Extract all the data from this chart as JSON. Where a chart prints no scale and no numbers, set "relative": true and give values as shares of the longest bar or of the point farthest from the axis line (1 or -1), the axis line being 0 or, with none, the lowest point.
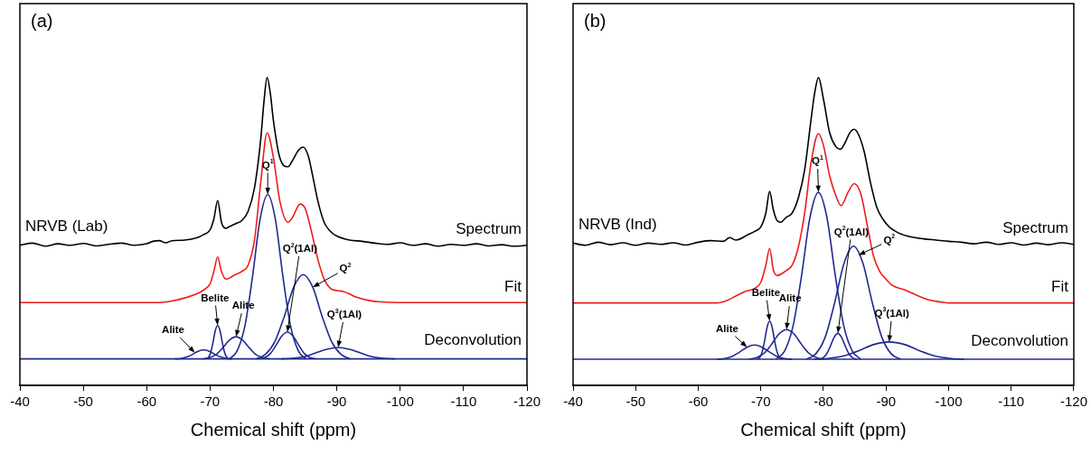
{
  "chart_data": [
    {
      "type": "line",
      "title": "(a)",
      "xlabel": "Chemical shift (ppm)",
      "relative": true,
      "tick_labels": "x",
      "xlim": [
        -40,
        -120
      ],
      "xticks": [
        -40,
        -50,
        -60,
        -70,
        -80,
        -90,
        -100,
        -110,
        -120
      ],
      "series": [
        {
          "name": "Spectrum",
          "color": "#000000",
          "x": [
            -40,
            -42,
            -44,
            -46,
            -48,
            -50,
            -52,
            -54,
            -56,
            -58,
            -60,
            -61,
            -62,
            -63,
            -64,
            -66,
            -68,
            -69,
            -70,
            -70.6,
            -71.2,
            -71.8,
            -72.5,
            -73,
            -74,
            -75,
            -76,
            -77,
            -78,
            -78.5,
            -79,
            -79.5,
            -80,
            -81,
            -82.3,
            -83,
            -84,
            -84.7,
            -85.5,
            -86,
            -87,
            -88,
            -89,
            -90,
            -92,
            -94,
            -96,
            -98,
            -100,
            -102,
            -104,
            -106,
            -108,
            -110,
            -112,
            -114,
            -116,
            -118,
            -120
          ],
          "values": [
            0.455,
            0.462,
            0.452,
            0.46,
            0.455,
            0.461,
            0.453,
            0.458,
            0.462,
            0.455,
            0.46,
            0.468,
            0.47,
            0.463,
            0.47,
            0.472,
            0.48,
            0.49,
            0.505,
            0.54,
            0.6,
            0.53,
            0.51,
            0.515,
            0.525,
            0.535,
            0.565,
            0.64,
            0.8,
            0.92,
            1.0,
            0.95,
            0.86,
            0.74,
            0.71,
            0.73,
            0.765,
            0.774,
            0.745,
            0.7,
            0.6,
            0.53,
            0.5,
            0.485,
            0.472,
            0.468,
            0.462,
            0.458,
            0.463,
            0.455,
            0.46,
            0.452,
            0.458,
            0.455,
            0.46,
            0.453,
            0.457,
            0.452,
            0.455
          ]
        },
        {
          "name": "Fit",
          "color": "#ee1c1c",
          "x": [
            -40,
            -62,
            -64,
            -66,
            -68,
            -69,
            -70,
            -70.6,
            -71.2,
            -71.8,
            -72.5,
            -74,
            -75,
            -76,
            -77,
            -78,
            -79,
            -80,
            -81,
            -82.3,
            -83,
            -84.2,
            -85,
            -86,
            -87,
            -88,
            -89,
            -90,
            -91,
            -92,
            -93,
            -95,
            -97,
            -100,
            -120
          ],
          "values": [
            0.269,
            0.269,
            0.274,
            0.284,
            0.298,
            0.31,
            0.33,
            0.37,
            0.417,
            0.37,
            0.345,
            0.36,
            0.37,
            0.39,
            0.47,
            0.66,
            0.82,
            0.74,
            0.6,
            0.53,
            0.545,
            0.589,
            0.575,
            0.5,
            0.41,
            0.345,
            0.315,
            0.308,
            0.305,
            0.297,
            0.287,
            0.276,
            0.271,
            0.269,
            0.269
          ]
        },
        {
          "color": "#1f2a8f",
          "x": [
            -40,
            -120
          ],
          "values": [
            0.086,
            0.086
          ]
        },
        {
          "color": "#1f2a8f",
          "x": [
            -64.5,
            -65.4,
            -66.3,
            -67.2,
            -68.1,
            -69,
            -69.9,
            -70.8,
            -71.7,
            -72.6,
            -73.5
          ],
          "values": [
            0.086,
            0.087,
            0.092,
            0.1,
            0.111,
            0.115,
            0.111,
            0.1,
            0.092,
            0.087,
            0.086
          ]
        },
        {
          "color": "#1f2a8f",
          "x": [
            -69.4,
            -69.76,
            -70.12,
            -70.48,
            -70.84,
            -71.2,
            -71.56,
            -71.92,
            -72.28,
            -72.64,
            -73
          ],
          "values": [
            0.086,
            0.091,
            0.108,
            0.141,
            0.179,
            0.195,
            0.179,
            0.141,
            0.108,
            0.091,
            0.086
          ]
        },
        {
          "color": "#1f2a8f",
          "x": [
            -68.85,
            -69.9,
            -70.95,
            -72,
            -73.05,
            -74.1,
            -75.15,
            -76.2,
            -77.25,
            -78.3,
            -79.35
          ],
          "values": [
            0.086,
            0.09,
            0.1,
            0.122,
            0.147,
            0.158,
            0.147,
            0.122,
            0.1,
            0.09,
            0.086
          ]
        },
        {
          "color": "#1f2a8f",
          "x": [
            -73.1,
            -74.3,
            -75.5,
            -76.7,
            -77.9,
            -79.1,
            -80.3,
            -81.5,
            -82.7,
            -83.9,
            -85.1
          ],
          "values": [
            0.086,
            0.113,
            0.193,
            0.353,
            0.54,
            0.62,
            0.54,
            0.353,
            0.193,
            0.113,
            0.086
          ]
        },
        {
          "color": "#1f2a8f",
          "x": [
            -77.7,
            -78.6,
            -79.5,
            -80.4,
            -81.3,
            -82.2,
            -83.1,
            -84,
            -84.9,
            -85.8,
            -86.7
          ],
          "values": [
            0.086,
            0.09,
            0.103,
            0.13,
            0.16,
            0.173,
            0.16,
            0.13,
            0.103,
            0.09,
            0.086
          ]
        },
        {
          "color": "#1f2a8f",
          "x": [
            -77.2,
            -78.7,
            -80.2,
            -81.7,
            -83.2,
            -84.7,
            -86.2,
            -87.7,
            -89.2,
            -90.7,
            -92.2
          ],
          "values": [
            0.086,
            0.1,
            0.141,
            0.223,
            0.319,
            0.36,
            0.319,
            0.223,
            0.141,
            0.1,
            0.086
          ]
        },
        {
          "color": "#1f2a8f",
          "x": [
            -81.2,
            -83,
            -84.8,
            -86.6,
            -88.4,
            -90.2,
            -92,
            -93.8,
            -95.6,
            -97.4,
            -99.2
          ],
          "values": [
            0.086,
            0.088,
            0.093,
            0.105,
            0.117,
            0.123,
            0.117,
            0.105,
            0.093,
            0.088,
            0.086
          ]
        }
      ],
      "annotations": [
        "NRVB (Lab)",
        "Deconvolution",
        {
          "text": "Alite",
          "x": -67.6,
          "y": 0.106
        },
        {
          "text": "Belite",
          "x": -71.2,
          "y": 0.195
        },
        {
          "text": "Alite",
          "x": -74.1,
          "y": 0.158
        },
        {
          "text": "Q$^{1}$",
          "x": -79.1,
          "y": 0.62
        },
        {
          "text": "Q$^{2}$(1Al)",
          "x": -82.2,
          "y": 0.173
        },
        {
          "text": "Q$^{2}$",
          "x": -86.2,
          "y": 0.319
        },
        {
          "text": "Q$^{3}$(1Al)",
          "x": -90.2,
          "y": 0.123
        }
      ]
    },
    {
      "type": "line",
      "title": "(b)",
      "xlabel": "Chemical shift (ppm)",
      "relative": true,
      "tick_labels": "x",
      "xlim": [
        -40,
        -120
      ],
      "xticks": [
        -40,
        -50,
        -60,
        -70,
        -80,
        -90,
        -100,
        -110,
        -120
      ],
      "series": [
        {
          "name": "Spectrum",
          "color": "#000000",
          "x": [
            -40,
            -42,
            -44,
            -46,
            -48,
            -50,
            -52,
            -54,
            -56,
            -58,
            -60,
            -62,
            -64,
            -65,
            -66,
            -68,
            -69,
            -70,
            -70.8,
            -71.4,
            -72,
            -72.6,
            -73.2,
            -74,
            -75,
            -76,
            -77,
            -78,
            -78.6,
            -79.2,
            -80,
            -81,
            -82,
            -82.7,
            -83.5,
            -84.2,
            -84.9,
            -85.6,
            -86.5,
            -87.5,
            -88.5,
            -89.5,
            -90.5,
            -92,
            -94,
            -96,
            -98,
            -100,
            -102,
            -104,
            -106,
            -108,
            -110,
            -112,
            -114,
            -116,
            -118,
            -120
          ],
          "values": [
            0.462,
            0.455,
            0.465,
            0.457,
            0.463,
            0.455,
            0.462,
            0.458,
            0.463,
            0.456,
            0.465,
            0.47,
            0.468,
            0.48,
            0.472,
            0.49,
            0.5,
            0.515,
            0.56,
            0.63,
            0.57,
            0.535,
            0.53,
            0.545,
            0.56,
            0.61,
            0.7,
            0.86,
            0.95,
            1.0,
            0.93,
            0.82,
            0.775,
            0.767,
            0.79,
            0.82,
            0.832,
            0.815,
            0.76,
            0.66,
            0.58,
            0.54,
            0.515,
            0.495,
            0.482,
            0.476,
            0.472,
            0.468,
            0.465,
            0.46,
            0.465,
            0.458,
            0.463,
            0.456,
            0.462,
            0.457,
            0.463,
            0.458
          ]
        },
        {
          "name": "Fit",
          "color": "#ee1c1c",
          "x": [
            -40,
            -63,
            -64.5,
            -66,
            -67.5,
            -69,
            -70,
            -70.8,
            -71.4,
            -72,
            -72.6,
            -74,
            -75,
            -76,
            -77,
            -78,
            -79.2,
            -80,
            -81,
            -82,
            -82.8,
            -84,
            -84.9,
            -86,
            -87,
            -88,
            -89,
            -90,
            -91,
            -93,
            -95,
            -97,
            -99,
            -100,
            -120
          ],
          "values": [
            0.268,
            0.268,
            0.275,
            0.29,
            0.305,
            0.315,
            0.335,
            0.39,
            0.445,
            0.375,
            0.357,
            0.372,
            0.39,
            0.45,
            0.56,
            0.72,
            0.818,
            0.78,
            0.68,
            0.615,
            0.584,
            0.63,
            0.655,
            0.62,
            0.52,
            0.42,
            0.37,
            0.345,
            0.325,
            0.31,
            0.292,
            0.277,
            0.27,
            0.268,
            0.268
          ]
        },
        {
          "color": "#1f2a8f",
          "x": [
            -40,
            -120
          ],
          "values": [
            0.085,
            0.085
          ]
        },
        {
          "color": "#1f2a8f",
          "x": [
            -63,
            -64.2,
            -65.4,
            -66.6,
            -67.8,
            -69,
            -70.2,
            -71.4,
            -72.6,
            -73.8,
            -75
          ],
          "values": [
            0.085,
            0.087,
            0.094,
            0.108,
            0.124,
            0.131,
            0.124,
            0.108,
            0.094,
            0.087,
            0.085
          ]
        },
        {
          "color": "#1f2a8f",
          "x": [
            -69.45,
            -69.84,
            -70.23,
            -70.62,
            -71.01,
            -71.4,
            -71.79,
            -72.18,
            -72.57,
            -72.96,
            -73.35
          ],
          "values": [
            0.085,
            0.091,
            0.11,
            0.147,
            0.19,
            0.209,
            0.19,
            0.147,
            0.11,
            0.091,
            0.085
          ]
        },
        {
          "color": "#1f2a8f",
          "x": [
            -68.1,
            -69.3,
            -70.5,
            -71.7,
            -72.9,
            -74.1,
            -75.3,
            -76.5,
            -77.7,
            -78.9,
            -80.1
          ],
          "values": [
            0.085,
            0.09,
            0.104,
            0.133,
            0.167,
            0.181,
            0.167,
            0.133,
            0.104,
            0.09,
            0.085
          ]
        },
        {
          "color": "#1f2a8f",
          "x": [
            -72.45,
            -73.8,
            -75.15,
            -76.5,
            -77.85,
            -79.2,
            -80.55,
            -81.9,
            -83.25,
            -84.6,
            -85.95
          ],
          "values": [
            0.085,
            0.112,
            0.193,
            0.356,
            0.546,
            0.627,
            0.546,
            0.356,
            0.193,
            0.112,
            0.085
          ]
        },
        {
          "color": "#1f2a8f",
          "x": [
            -79.3,
            -79.9,
            -80.5,
            -81.1,
            -81.7,
            -82.3,
            -82.9,
            -83.5,
            -84.1,
            -84.7,
            -85.3
          ],
          "values": [
            0.085,
            0.089,
            0.102,
            0.127,
            0.156,
            0.169,
            0.156,
            0.127,
            0.102,
            0.089,
            0.085
          ]
        },
        {
          "color": "#1f2a8f",
          "x": [
            -77.3,
            -78.8,
            -80.3,
            -81.8,
            -83.3,
            -84.8,
            -86.3,
            -87.8,
            -89.3,
            -90.8,
            -92.3
          ],
          "values": [
            0.085,
            0.103,
            0.158,
            0.269,
            0.397,
            0.452,
            0.397,
            0.269,
            0.158,
            0.103,
            0.085
          ]
        },
        {
          "color": "#1f2a8f",
          "x": [
            -78.5,
            -80.9,
            -83.3,
            -85.7,
            -88.1,
            -90.5,
            -92.9,
            -95.3,
            -97.7,
            -100.1,
            -102.5
          ],
          "values": [
            0.085,
            0.088,
            0.096,
            0.113,
            0.133,
            0.141,
            0.133,
            0.113,
            0.096,
            0.088,
            0.085
          ]
        }
      ],
      "annotations": [
        "NRVB (Ind)",
        "Deconvolution",
        {
          "text": "Alite",
          "x": -67.8,
          "y": 0.124
        },
        {
          "text": "Belite",
          "x": -71.4,
          "y": 0.209
        },
        {
          "text": "Alite",
          "x": -74.1,
          "y": 0.181
        },
        {
          "text": "Q$^{1}$",
          "x": -79.2,
          "y": 0.627
        },
        {
          "text": "Q$^{2}$(1Al)",
          "x": -82.3,
          "y": 0.169
        },
        {
          "text": "Q$^{2}$",
          "x": -85.6,
          "y": 0.423
        },
        {
          "text": "Q$^{3}$(1Al)",
          "x": -90.5,
          "y": 0.141
        }
      ]
    }
  ]
}
